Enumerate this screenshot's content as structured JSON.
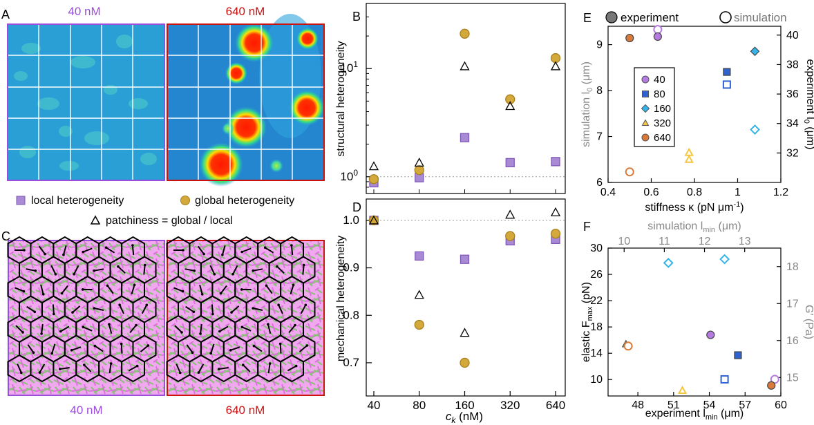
{
  "panels": {
    "A": {
      "letter": "A",
      "left_title": "40 nM",
      "right_title": "640 nM",
      "left_color": "#9b4dde",
      "right_color": "#cc1111"
    },
    "C": {
      "letter": "C",
      "left_caption": "40 nM",
      "right_caption": "640 nM",
      "left_color": "#9b4dde",
      "right_color": "#cc1111"
    }
  },
  "legend_AB": {
    "local": "local heterogeneity",
    "global": "global heterogeneity",
    "patchiness": "patchiness = global / local"
  },
  "colors": {
    "local_fill": "#a98ad4",
    "local_stroke": "#7f58b8",
    "global_fill": "#d3a93c",
    "global_stroke": "#a9801e",
    "purple": "#b57be0",
    "blue": "#2f62d0",
    "cyan": "#35b4ec",
    "yellow": "#f5c63f",
    "orange": "#d97a3a",
    "gray": "#888888"
  },
  "chart_data": [
    {
      "panel": "B",
      "type": "scatter",
      "ylabel": "structural heterogeneity",
      "yscale": "log",
      "ylim": [
        0.7,
        40
      ],
      "yticks": [
        {
          "v": 1,
          "label": "10",
          "sup": "0"
        },
        {
          "v": 10,
          "label": "10",
          "sup": "1"
        }
      ],
      "reference_line": 1,
      "categories": [
        "40",
        "80",
        "160",
        "320",
        "640"
      ],
      "series": [
        {
          "key": "local",
          "marker": "square",
          "values": [
            0.88,
            0.98,
            2.3,
            1.35,
            1.38
          ]
        },
        {
          "key": "global",
          "marker": "circle",
          "values": [
            0.95,
            1.15,
            21,
            5.2,
            12.5
          ]
        },
        {
          "key": "patchiness",
          "marker": "triangle",
          "values": [
            1.25,
            1.35,
            10.5,
            4.5,
            10.5
          ]
        }
      ]
    },
    {
      "panel": "D",
      "type": "scatter",
      "ylabel": "mechanical heterogeneity",
      "xlabel": "c",
      "xlabel_sub": "k",
      "xlabel_unit": " (nM)",
      "ylim": [
        0.63,
        1.045
      ],
      "yticks": [
        0.7,
        0.8,
        0.9,
        1.0
      ],
      "reference_line": 1.0,
      "categories": [
        "40",
        "80",
        "160",
        "320",
        "640"
      ],
      "series": [
        {
          "key": "local",
          "marker": "square",
          "values": [
            1.0,
            0.925,
            0.918,
            0.957,
            0.96
          ]
        },
        {
          "key": "global",
          "marker": "circle",
          "values": [
            1.0,
            0.78,
            0.7,
            0.967,
            0.972
          ]
        },
        {
          "key": "patchiness",
          "marker": "triangle",
          "values": [
            1.0,
            0.843,
            0.763,
            1.012,
            1.017
          ]
        }
      ]
    },
    {
      "panel": "E",
      "type": "scatter",
      "xlabel": "stiffness κ (pN μm",
      "xlabel_sup": "-1",
      "xlabel_end": ")",
      "ylabel_left": "simulation l",
      "ylabel_left_sub": "0",
      "ylabel_left_unit": " (μm)",
      "ylabel_right": "experiment l",
      "ylabel_right_sub": "0",
      "ylabel_right_unit": " (μm)",
      "xlim": [
        0.4,
        1.2
      ],
      "ylim": [
        6,
        9.4
      ],
      "y2lim": [
        30,
        40.6
      ],
      "xticks": [
        0.4,
        0.6,
        0.8,
        1.0,
        1.2
      ],
      "yticks": [
        6,
        7,
        8,
        9
      ],
      "y2ticks": [
        32,
        34,
        36,
        38,
        40
      ],
      "legend_top": {
        "experiment": "experiment",
        "simulation": "simulation"
      },
      "legend_title_box": [
        "40",
        "80",
        "160",
        "320",
        "640"
      ],
      "series": [
        {
          "name": "40",
          "marker": "circle",
          "simulation": [
            [
              0.63,
              9.33
            ]
          ],
          "experiment_y2": [
            [
              0.63,
              39.9
            ]
          ]
        },
        {
          "name": "80",
          "marker": "square",
          "simulation": [
            [
              0.95,
              8.13
            ]
          ],
          "experiment_y2": [
            [
              0.95,
              37.5
            ]
          ]
        },
        {
          "name": "160",
          "marker": "diamond",
          "simulation": [
            [
              1.08,
              7.15
            ]
          ],
          "experiment_y2": [
            [
              1.08,
              38.9
            ]
          ]
        },
        {
          "name": "320",
          "marker": "triangle",
          "simulation": [
            [
              0.775,
              6.65
            ],
            [
              0.775,
              6.5
            ]
          ],
          "experiment_y2": []
        },
        {
          "name": "640",
          "marker": "circle",
          "simulation": [
            [
              0.5,
              6.23
            ]
          ],
          "experiment_y2": [
            [
              0.5,
              39.8
            ]
          ]
        }
      ]
    },
    {
      "panel": "F",
      "type": "scatter",
      "xlabel": "experiment l",
      "xlabel_sub": "min",
      "xlabel_unit": " (μm)",
      "x2label": "simulation l",
      "x2label_sub": "min",
      "x2label_unit": " (μm)",
      "ylabel_left": "elastic F",
      "ylabel_left_sub": "max",
      "ylabel_left_unit": " (pN)",
      "ylabel_right": "G′ (Pa)",
      "xlim": [
        45.5,
        60
      ],
      "x2lim": [
        9.6,
        13.9
      ],
      "ylim": [
        7.5,
        30
      ],
      "y2lim": [
        14.5,
        18.5
      ],
      "xticks": [
        48,
        51,
        54,
        57,
        60
      ],
      "x2ticks": [
        10,
        11,
        12,
        13
      ],
      "yticks": [
        10,
        14,
        18,
        22,
        26,
        30
      ],
      "y2ticks": [
        15,
        16,
        17,
        18
      ],
      "series": [
        {
          "name": "40",
          "marker": "circle",
          "experiment": [
            [
              54.1,
              16.8
            ]
          ],
          "simulation": [
            [
              13.75,
              14.95
            ]
          ]
        },
        {
          "name": "80",
          "marker": "square",
          "experiment": [
            [
              56.4,
              13.7
            ]
          ],
          "simulation": [
            [
              12.5,
              14.95
            ]
          ]
        },
        {
          "name": "160",
          "marker": "diamond",
          "experiment": [],
          "simulation": [
            [
              11.1,
              18.1
            ],
            [
              12.5,
              18.2
            ]
          ]
        },
        {
          "name": "320",
          "marker": "triangle",
          "experiment": [
            [
              47.0,
              15.4
            ]
          ],
          "simulation": [
            [
              11.45,
              14.65
            ]
          ]
        },
        {
          "name": "640",
          "marker": "circle",
          "experiment": [
            [
              59.2,
              9.1
            ]
          ],
          "simulation": [
            [
              10.1,
              15.85
            ]
          ]
        }
      ]
    }
  ]
}
